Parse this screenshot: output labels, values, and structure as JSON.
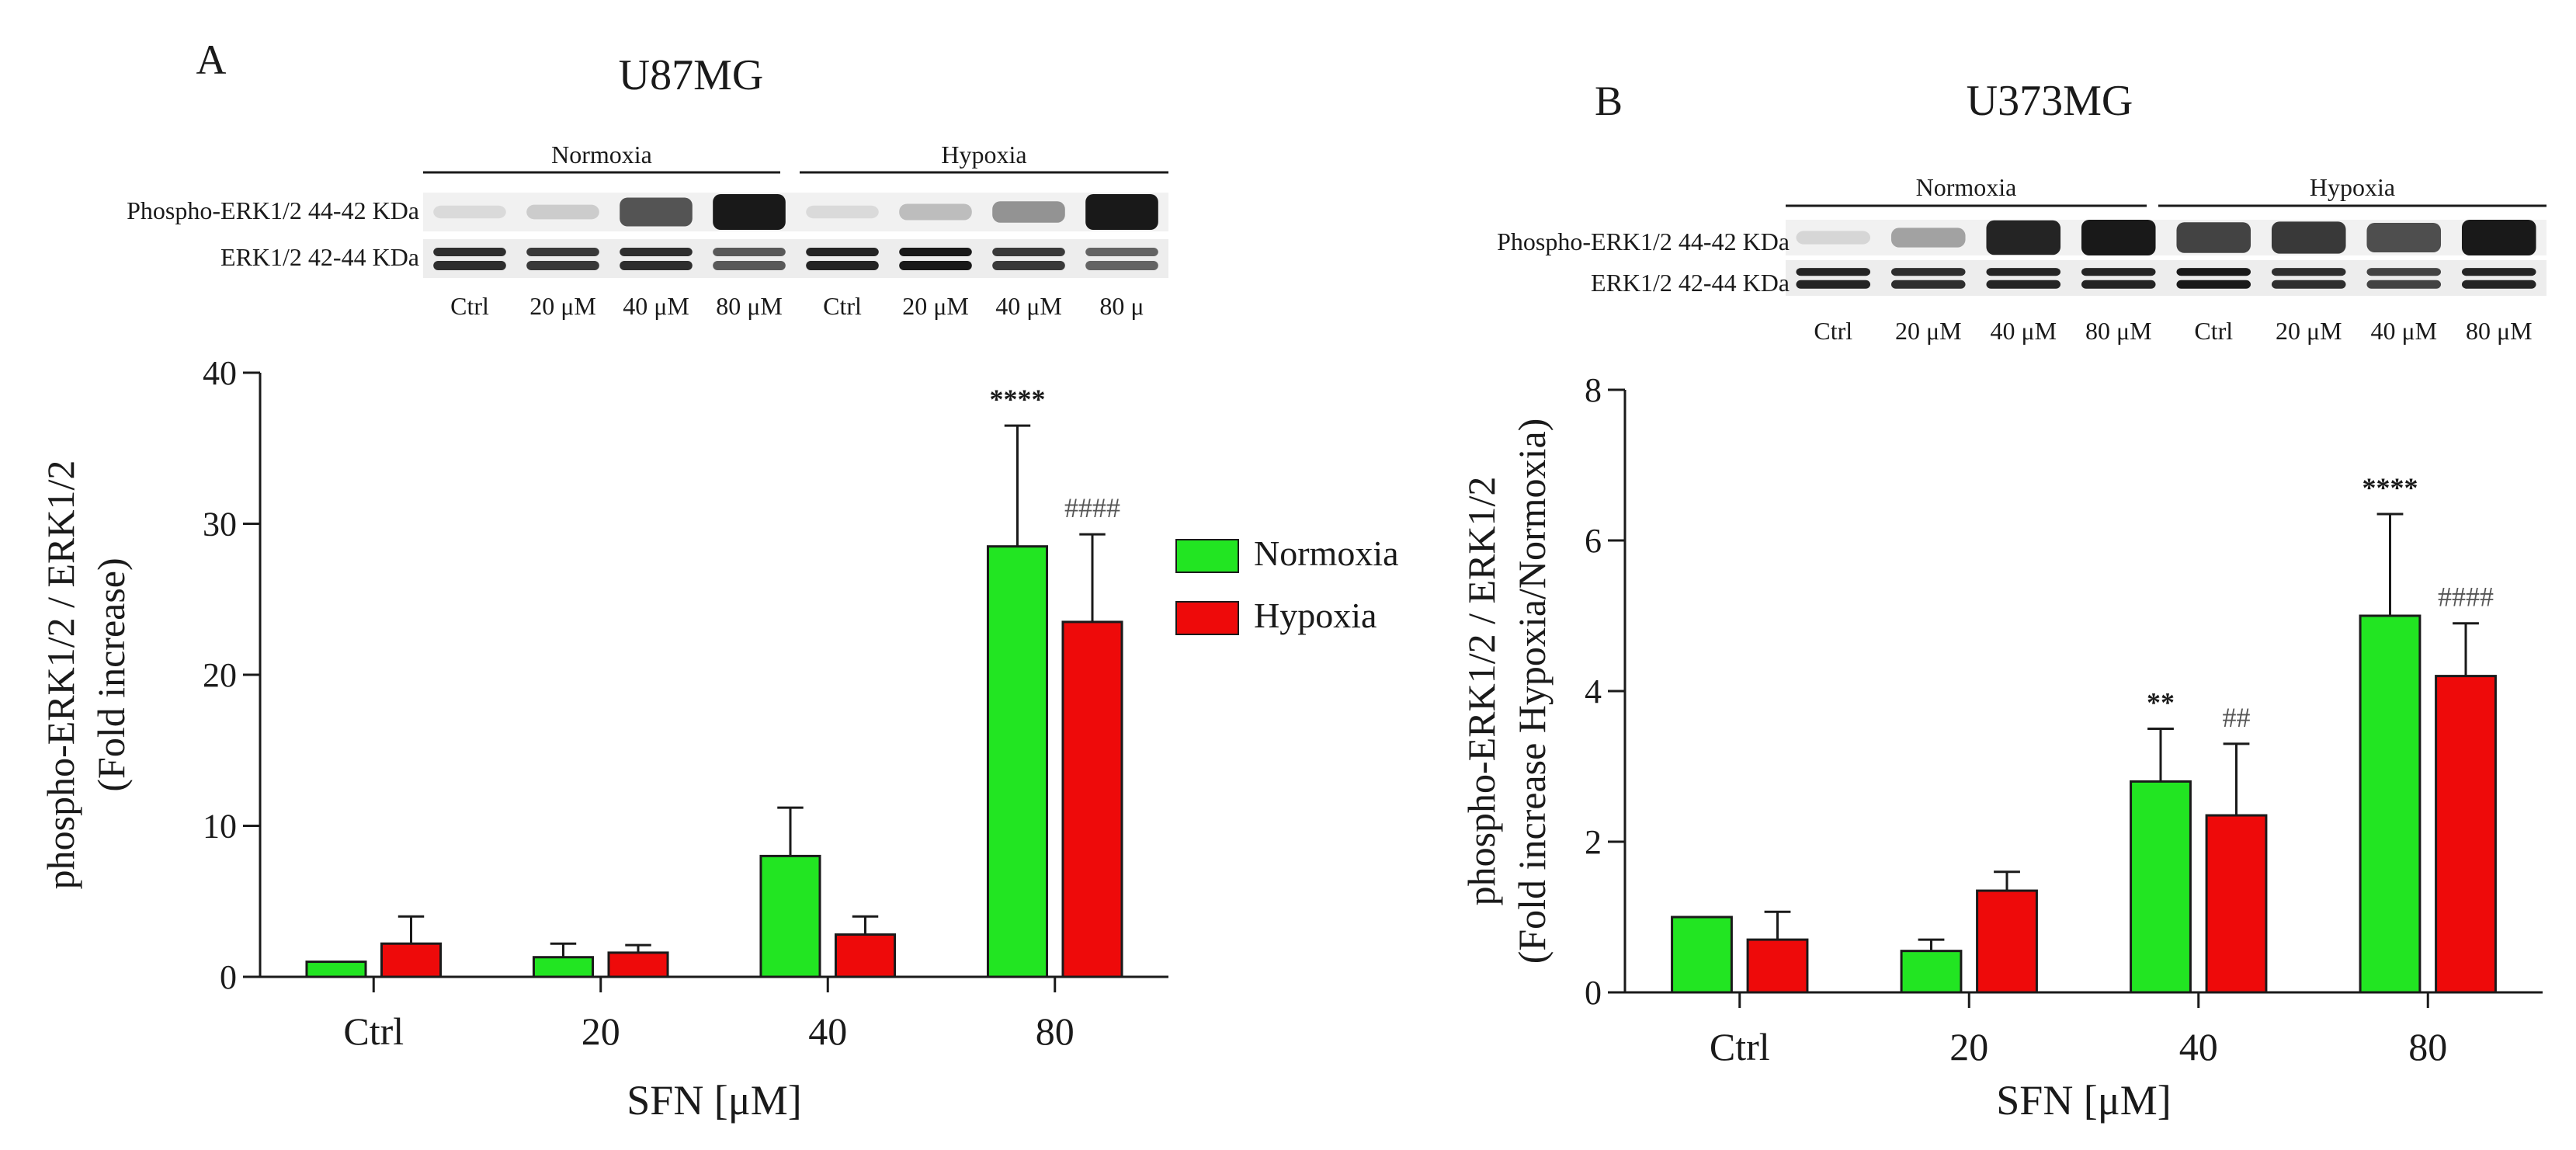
{
  "colors": {
    "normoxia": "#22e522",
    "hypoxia": "#ee0a0a",
    "axis": "#1a1a1a",
    "annotation": "#555555",
    "band": "#1f1f1f"
  },
  "chart_data": [
    {
      "type": "bar",
      "panel_label": "A",
      "title": "U87MG",
      "xlabel": "SFN [μM]",
      "ylabel": "phospho-ERK1/2 / ERK1/2",
      "ylabel2": "(Fold increase)",
      "categories": [
        "Ctrl",
        "20",
        "40",
        "80"
      ],
      "ylim": [
        0,
        40
      ],
      "yticks": [
        0,
        10,
        20,
        30,
        40
      ],
      "grid": false,
      "legend": {
        "position": "right",
        "entries": [
          "Normoxia",
          "Hypoxia"
        ]
      },
      "series": [
        {
          "name": "Normoxia",
          "color_key": "normoxia",
          "values": [
            1.0,
            1.3,
            8.0,
            28.5
          ],
          "errors": [
            0,
            0.9,
            3.2,
            8.0
          ],
          "annotations": [
            "",
            "",
            "",
            "****"
          ]
        },
        {
          "name": "Hypoxia",
          "color_key": "hypoxia",
          "values": [
            2.2,
            1.6,
            2.8,
            23.5
          ],
          "errors": [
            1.8,
            0.5,
            1.2,
            5.8
          ],
          "annotations": [
            "",
            "",
            "",
            "####"
          ]
        }
      ],
      "blot": {
        "groups": [
          "Normoxia",
          "Hypoxia"
        ],
        "rows": [
          "Phospho-ERK1/2 44-42 KDa",
          "ERK1/2 42-44 KDa"
        ],
        "lanes": [
          "Ctrl",
          "20 μM",
          "40 μM",
          "80 μM",
          "Ctrl",
          "20 μM",
          "40 μM",
          "80 μ"
        ],
        "phospho_intensity": [
          0.08,
          0.15,
          0.72,
          1.0,
          0.08,
          0.22,
          0.42,
          1.0
        ],
        "total_intensity": [
          0.9,
          0.85,
          0.9,
          0.7,
          0.95,
          1.0,
          0.85,
          0.65
        ]
      }
    },
    {
      "type": "bar",
      "panel_label": "B",
      "title": "U373MG",
      "xlabel": "SFN [μM]",
      "ylabel": "phospho-ERK1/2 / ERK1/2",
      "ylabel2": "(Fold increase Hypoxia/Normoxia)",
      "categories": [
        "Ctrl",
        "20",
        "40",
        "80"
      ],
      "ylim": [
        0,
        8
      ],
      "yticks": [
        0,
        2,
        4,
        6,
        8
      ],
      "grid": false,
      "series": [
        {
          "name": "Normoxia",
          "color_key": "normoxia",
          "values": [
            1.0,
            0.55,
            2.8,
            5.0
          ],
          "errors": [
            0,
            0.15,
            0.7,
            1.35
          ],
          "annotations": [
            "",
            "",
            "**",
            "****"
          ]
        },
        {
          "name": "Hypoxia",
          "color_key": "hypoxia",
          "values": [
            0.7,
            1.35,
            2.35,
            4.2
          ],
          "errors": [
            0.37,
            0.25,
            0.95,
            0.7
          ],
          "annotations": [
            "",
            "",
            "##",
            "####"
          ]
        }
      ],
      "blot": {
        "groups": [
          "Normoxia",
          "Hypoxia"
        ],
        "rows": [
          "Phospho-ERK1/2 44-42 KDa",
          "ERK1/2 42-44 KDa"
        ],
        "lanes": [
          "Ctrl",
          "20 μM",
          "40 μM",
          "80 μM",
          "Ctrl",
          "20 μM",
          "40 μM",
          "80 μM"
        ],
        "phospho_intensity": [
          0.1,
          0.35,
          0.95,
          1.0,
          0.8,
          0.85,
          0.75,
          1.0
        ],
        "total_intensity": [
          0.95,
          0.9,
          0.95,
          0.95,
          1.0,
          0.9,
          0.8,
          0.95
        ]
      }
    }
  ]
}
